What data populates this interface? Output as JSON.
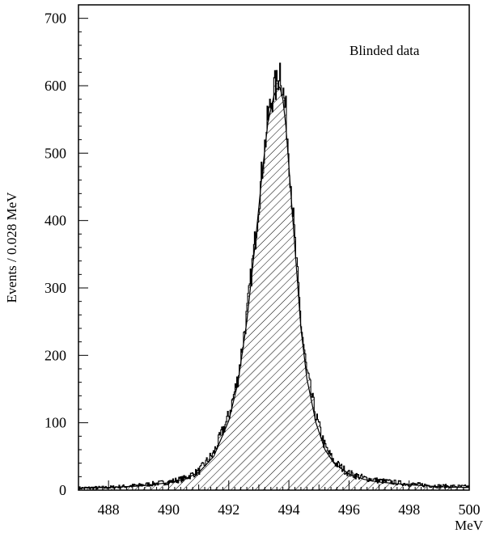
{
  "chart_data": {
    "type": "histogram",
    "title": "",
    "annotation": "Blinded data",
    "xlabel": "MeV",
    "ylabel": "Events / 0.028 MeV",
    "xlim": [
      487,
      500
    ],
    "ylim": [
      0,
      720
    ],
    "x_ticks": [
      "488",
      "490",
      "492",
      "494",
      "496",
      "498",
      "500"
    ],
    "y_ticks": [
      "0",
      "100",
      "200",
      "300",
      "400",
      "500",
      "600",
      "700"
    ],
    "bin_width": 0.028,
    "grid": false,
    "legend": "none",
    "series": [
      {
        "style": "hatched histogram",
        "x": [
          487.0,
          488.0,
          489.0,
          490.0,
          490.5,
          491.0,
          491.5,
          492.0,
          492.3,
          492.6,
          492.9,
          493.1,
          493.3,
          493.5,
          493.6,
          493.7,
          493.8,
          493.9,
          494.0,
          494.2,
          494.4,
          494.6,
          494.9,
          495.2,
          495.5,
          496.0,
          496.5,
          497.0,
          498.0,
          499.0,
          500.0
        ],
        "values": [
          3,
          4,
          7,
          12,
          17,
          28,
          55,
          110,
          165,
          260,
          380,
          470,
          550,
          595,
          600,
          630,
          595,
          560,
          500,
          370,
          250,
          175,
          110,
          65,
          42,
          25,
          18,
          14,
          9,
          6,
          5
        ]
      },
      {
        "style": "fit curve",
        "x": [
          487.0,
          488.0,
          489.0,
          490.0,
          490.5,
          491.0,
          491.5,
          492.0,
          492.3,
          492.6,
          492.9,
          493.1,
          493.3,
          493.5,
          493.6,
          493.7,
          493.8,
          493.9,
          494.0,
          494.2,
          494.4,
          494.6,
          494.9,
          495.2,
          495.5,
          496.0,
          496.5,
          497.0,
          498.0,
          499.0,
          500.0
        ],
        "values": [
          3,
          4,
          6,
          11,
          16,
          26,
          50,
          103,
          158,
          250,
          375,
          465,
          545,
          585,
          595,
          598,
          580,
          540,
          480,
          360,
          240,
          165,
          100,
          60,
          40,
          24,
          16,
          12,
          8,
          5,
          4
        ]
      }
    ]
  }
}
